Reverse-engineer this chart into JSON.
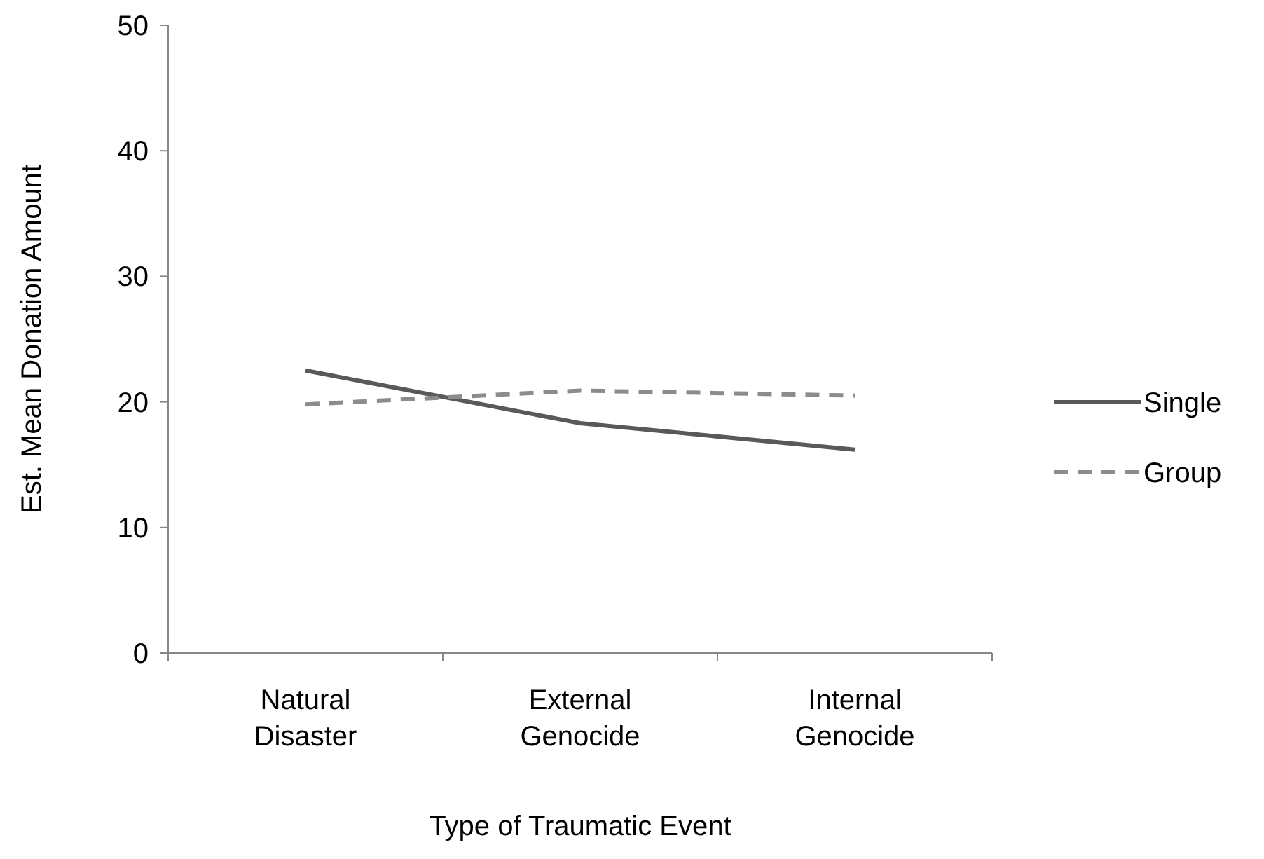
{
  "chart_data": {
    "type": "line",
    "xlabel": "Type of Traumatic Event",
    "ylabel": "Est. Mean Donation Amount",
    "categories": [
      "Natural Disaster",
      "External Genocide",
      "Internal Genocide"
    ],
    "series": [
      {
        "name": "Single",
        "color": "#595959",
        "values": [
          22.5,
          18.3,
          16.2
        ],
        "line_style": "solid"
      },
      {
        "name": "Group",
        "color": "#8c8c8c",
        "values": [
          19.8,
          20.9,
          20.5
        ],
        "line_style": "dashed"
      }
    ],
    "ylim": [
      0,
      50
    ],
    "yticks": [
      0,
      10,
      20,
      30,
      40,
      50
    ],
    "grid": false,
    "legend": "right",
    "marker": "none"
  }
}
